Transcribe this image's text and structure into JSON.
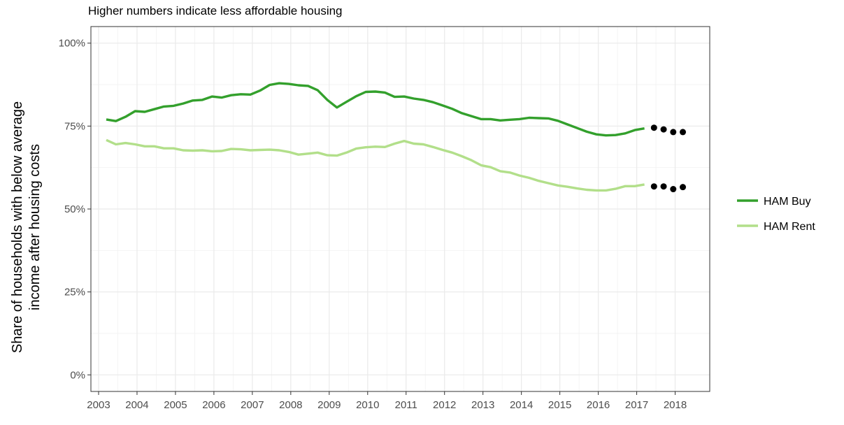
{
  "chart_data": {
    "type": "line",
    "subtitle": "Higher numbers indicate less affordable housing",
    "ylabel_lines": [
      "Share of households with below average",
      "income after housing costs"
    ],
    "xlabel": "",
    "xlim": [
      2002.8,
      2018.9
    ],
    "ylim": [
      -0.05,
      1.05
    ],
    "x_ticks": [
      2003,
      2004,
      2005,
      2006,
      2007,
      2008,
      2009,
      2010,
      2011,
      2012,
      2013,
      2014,
      2015,
      2016,
      2017,
      2018
    ],
    "x_tick_labels": [
      "2003",
      "2004",
      "2005",
      "2006",
      "2007",
      "2008",
      "2009",
      "2010",
      "2011",
      "2012",
      "2013",
      "2014",
      "2015",
      "2016",
      "2017",
      "2018"
    ],
    "y_ticks": [
      0,
      0.25,
      0.5,
      0.75,
      1.0
    ],
    "y_tick_labels": [
      "0%",
      "25%",
      "50%",
      "75%",
      "100%"
    ],
    "grid": true,
    "legend_position": "right",
    "series": [
      {
        "name": "HAM Buy",
        "color": "#33a02c",
        "x": [
          2003.2,
          2003.45,
          2003.7,
          2003.95,
          2004.2,
          2004.45,
          2004.7,
          2004.95,
          2005.2,
          2005.45,
          2005.7,
          2005.95,
          2006.2,
          2006.45,
          2006.7,
          2006.95,
          2007.2,
          2007.45,
          2007.7,
          2007.95,
          2008.2,
          2008.45,
          2008.7,
          2008.95,
          2009.2,
          2009.45,
          2009.7,
          2009.95,
          2010.2,
          2010.45,
          2010.7,
          2010.95,
          2011.2,
          2011.45,
          2011.7,
          2011.95,
          2012.2,
          2012.45,
          2012.7,
          2012.95,
          2013.2,
          2013.45,
          2013.7,
          2013.95,
          2014.2,
          2014.45,
          2014.7,
          2014.95,
          2015.2,
          2015.45,
          2015.7,
          2015.95,
          2016.2,
          2016.45,
          2016.7,
          2016.95,
          2017.2
        ],
        "y": [
          0.77,
          0.765,
          0.778,
          0.795,
          0.793,
          0.801,
          0.809,
          0.811,
          0.818,
          0.827,
          0.829,
          0.839,
          0.836,
          0.843,
          0.846,
          0.845,
          0.857,
          0.874,
          0.879,
          0.877,
          0.873,
          0.871,
          0.858,
          0.829,
          0.806,
          0.823,
          0.84,
          0.853,
          0.854,
          0.851,
          0.838,
          0.839,
          0.833,
          0.829,
          0.822,
          0.812,
          0.802,
          0.789,
          0.78,
          0.771,
          0.771,
          0.767,
          0.769,
          0.771,
          0.775,
          0.774,
          0.773,
          0.766,
          0.755,
          0.744,
          0.733,
          0.725,
          0.722,
          0.723,
          0.728,
          0.738,
          0.743
        ]
      },
      {
        "name": "HAM Rent",
        "color": "#b2df8a",
        "x": [
          2003.2,
          2003.45,
          2003.7,
          2003.95,
          2004.2,
          2004.45,
          2004.7,
          2004.95,
          2005.2,
          2005.45,
          2005.7,
          2005.95,
          2006.2,
          2006.45,
          2006.7,
          2006.95,
          2007.2,
          2007.45,
          2007.7,
          2007.95,
          2008.2,
          2008.45,
          2008.7,
          2008.95,
          2009.2,
          2009.45,
          2009.7,
          2009.95,
          2010.2,
          2010.45,
          2010.7,
          2010.95,
          2011.2,
          2011.45,
          2011.7,
          2011.95,
          2012.2,
          2012.45,
          2012.7,
          2012.95,
          2013.2,
          2013.45,
          2013.7,
          2013.95,
          2014.2,
          2014.45,
          2014.7,
          2014.95,
          2015.2,
          2015.45,
          2015.7,
          2015.95,
          2016.2,
          2016.45,
          2016.7,
          2016.95,
          2017.2
        ],
        "y": [
          0.708,
          0.695,
          0.699,
          0.695,
          0.689,
          0.689,
          0.683,
          0.683,
          0.677,
          0.676,
          0.677,
          0.674,
          0.675,
          0.681,
          0.68,
          0.677,
          0.678,
          0.679,
          0.677,
          0.672,
          0.664,
          0.667,
          0.67,
          0.662,
          0.661,
          0.67,
          0.682,
          0.686,
          0.688,
          0.687,
          0.697,
          0.705,
          0.697,
          0.695,
          0.687,
          0.678,
          0.67,
          0.659,
          0.647,
          0.632,
          0.626,
          0.614,
          0.61,
          0.601,
          0.594,
          0.585,
          0.578,
          0.571,
          0.567,
          0.562,
          0.558,
          0.556,
          0.556,
          0.561,
          0.569,
          0.569,
          0.574
        ]
      }
    ],
    "points": [
      {
        "series": "HAM Buy",
        "color": "#000000",
        "x": [
          2017.45,
          2017.7,
          2017.95,
          2018.2
        ],
        "y": [
          0.745,
          0.74,
          0.732,
          0.732
        ]
      },
      {
        "series": "HAM Rent",
        "color": "#000000",
        "x": [
          2017.45,
          2017.7,
          2017.95,
          2018.2
        ],
        "y": [
          0.568,
          0.568,
          0.56,
          0.566
        ]
      }
    ]
  }
}
